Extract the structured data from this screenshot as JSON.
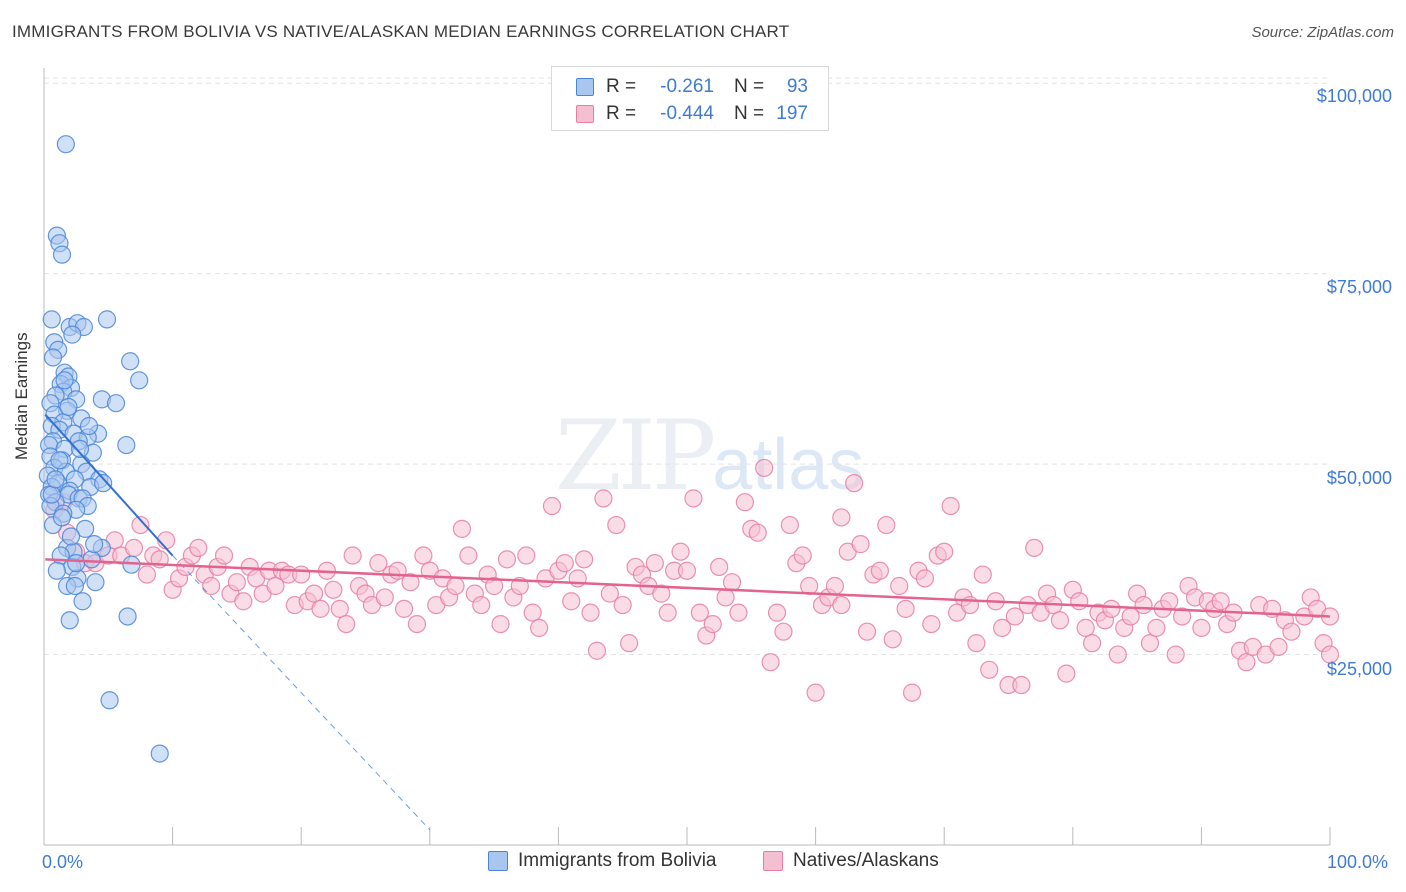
{
  "title": "IMMIGRANTS FROM BOLIVIA VS NATIVE/ALASKAN MEDIAN EARNINGS CORRELATION CHART",
  "source": "Source: ZipAtlas.com",
  "watermark": {
    "zip": "ZIP",
    "atlas": "atlas"
  },
  "legend": {
    "rows": [
      {
        "r_label": "R =",
        "r_value": "-0.261",
        "n_label": "N =",
        "n_value": "93",
        "color": "#4a86d8"
      },
      {
        "r_label": "R =",
        "r_value": "-0.444",
        "n_label": "N =",
        "n_value": "197",
        "color": "#e87ea1"
      }
    ]
  },
  "colors": {
    "blue_fill": "#a9c6ee",
    "blue_stroke": "#4a86d8",
    "blue_line": "#3371d1",
    "pink_fill": "#f5bfd2",
    "pink_stroke": "#e87ea1",
    "pink_line": "#e3638f",
    "grid": "#e3e3e3",
    "axis_text": "#3f7bd6"
  },
  "chart_data": {
    "type": "scatter",
    "title": "IMMIGRANTS FROM BOLIVIA VS NATIVE/ALASKAN MEDIAN EARNINGS CORRELATION CHART",
    "xlabel": "",
    "ylabel": "Median Earnings",
    "xlim": [
      0,
      100
    ],
    "ylim": [
      0,
      102000
    ],
    "x_tick_labels": [
      "0.0%",
      "100.0%"
    ],
    "y_ticks": [
      25000,
      50000,
      75000,
      100000
    ],
    "y_tick_labels": [
      "$25,000",
      "$50,000",
      "$75,000",
      "$100,000"
    ],
    "grid": true,
    "legend_position": "top-center",
    "series": [
      {
        "name": "Immigrants from Bolivia",
        "r": -0.261,
        "n": 93,
        "trend": {
          "x0": 0.1,
          "y0": 56500,
          "x1": 10.0,
          "y1": 38000,
          "dashed_to_x": 30.0,
          "dashed_to_y": 2000
        },
        "points": [
          [
            1.7,
            92000
          ],
          [
            1.0,
            80000
          ],
          [
            1.2,
            79000
          ],
          [
            1.4,
            77500
          ],
          [
            0.6,
            69000
          ],
          [
            2.0,
            68000
          ],
          [
            2.6,
            68500
          ],
          [
            3.1,
            68000
          ],
          [
            4.9,
            69000
          ],
          [
            2.2,
            67000
          ],
          [
            0.8,
            66000
          ],
          [
            1.1,
            65000
          ],
          [
            0.7,
            64000
          ],
          [
            6.7,
            63500
          ],
          [
            1.6,
            62000
          ],
          [
            1.9,
            61500
          ],
          [
            7.4,
            61000
          ],
          [
            1.3,
            60500
          ],
          [
            2.1,
            60000
          ],
          [
            1.5,
            59500
          ],
          [
            0.9,
            59000
          ],
          [
            4.5,
            58500
          ],
          [
            2.5,
            58500
          ],
          [
            0.5,
            58000
          ],
          [
            5.6,
            58000
          ],
          [
            1.8,
            57000
          ],
          [
            0.8,
            56500
          ],
          [
            2.9,
            56000
          ],
          [
            1.5,
            55500
          ],
          [
            0.6,
            55000
          ],
          [
            1.2,
            54500
          ],
          [
            2.3,
            54000
          ],
          [
            4.2,
            54000
          ],
          [
            3.4,
            53500
          ],
          [
            0.7,
            53000
          ],
          [
            2.7,
            53000
          ],
          [
            0.4,
            52500
          ],
          [
            6.4,
            52500
          ],
          [
            1.6,
            52000
          ],
          [
            3.8,
            51500
          ],
          [
            0.5,
            51000
          ],
          [
            1.4,
            50500
          ],
          [
            2.9,
            50000
          ],
          [
            0.8,
            49500
          ],
          [
            3.3,
            49000
          ],
          [
            1.7,
            49000
          ],
          [
            0.3,
            48500
          ],
          [
            4.3,
            48000
          ],
          [
            2.4,
            48000
          ],
          [
            1.1,
            47500
          ],
          [
            0.6,
            47000
          ],
          [
            3.6,
            47000
          ],
          [
            2.0,
            46500
          ],
          [
            0.4,
            46000
          ],
          [
            1.9,
            46000
          ],
          [
            2.7,
            45500
          ],
          [
            3.0,
            45500
          ],
          [
            0.9,
            45000
          ],
          [
            3.4,
            44500
          ],
          [
            0.5,
            44500
          ],
          [
            2.5,
            44000
          ],
          [
            1.5,
            43500
          ],
          [
            0.7,
            42000
          ],
          [
            3.2,
            41500
          ],
          [
            1.8,
            39000
          ],
          [
            4.5,
            39000
          ],
          [
            2.3,
            38500
          ],
          [
            1.3,
            38000
          ],
          [
            3.7,
            37500
          ],
          [
            6.8,
            36800
          ],
          [
            2.2,
            36500
          ],
          [
            1.0,
            36000
          ],
          [
            2.6,
            35000
          ],
          [
            4.0,
            34500
          ],
          [
            1.8,
            34000
          ],
          [
            2.4,
            34000
          ],
          [
            3.0,
            32000
          ],
          [
            6.5,
            30000
          ],
          [
            2.0,
            29500
          ],
          [
            5.1,
            19000
          ],
          [
            9.0,
            12000
          ],
          [
            0.6,
            46000
          ],
          [
            1.2,
            50500
          ],
          [
            3.5,
            55000
          ],
          [
            1.9,
            57500
          ],
          [
            2.8,
            52000
          ],
          [
            0.9,
            48000
          ],
          [
            4.6,
            47500
          ],
          [
            1.4,
            43000
          ],
          [
            2.1,
            40500
          ],
          [
            3.9,
            39500
          ],
          [
            2.5,
            37000
          ],
          [
            1.6,
            61000
          ]
        ]
      },
      {
        "name": "Natives/Alaskans",
        "r": -0.444,
        "n": 197,
        "trend": {
          "x0": 0.1,
          "y0": 37500,
          "x1": 100.0,
          "y1": 30000
        },
        "points": [
          [
            0.8,
            44000
          ],
          [
            1.5,
            45000
          ],
          [
            1.8,
            41000
          ],
          [
            2.5,
            38500
          ],
          [
            3.2,
            37000
          ],
          [
            4.0,
            37000
          ],
          [
            5.0,
            38000
          ],
          [
            5.5,
            40000
          ],
          [
            6.0,
            38000
          ],
          [
            7.0,
            39000
          ],
          [
            7.5,
            42000
          ],
          [
            8.0,
            35500
          ],
          [
            8.5,
            38000
          ],
          [
            9.0,
            37500
          ],
          [
            9.5,
            40000
          ],
          [
            10.0,
            33500
          ],
          [
            10.5,
            35000
          ],
          [
            11.0,
            36500
          ],
          [
            11.5,
            38000
          ],
          [
            12.0,
            39000
          ],
          [
            12.5,
            35500
          ],
          [
            13.0,
            34000
          ],
          [
            13.5,
            36500
          ],
          [
            14.0,
            38000
          ],
          [
            14.5,
            33000
          ],
          [
            15.0,
            34500
          ],
          [
            15.5,
            32000
          ],
          [
            16.0,
            36500
          ],
          [
            16.5,
            35000
          ],
          [
            17.0,
            33000
          ],
          [
            17.5,
            36000
          ],
          [
            18.0,
            34000
          ],
          [
            18.5,
            36000
          ],
          [
            19.0,
            35500
          ],
          [
            19.5,
            31500
          ],
          [
            20.0,
            35500
          ],
          [
            20.5,
            32000
          ],
          [
            21.0,
            33000
          ],
          [
            21.5,
            31000
          ],
          [
            22.0,
            36000
          ],
          [
            22.5,
            33500
          ],
          [
            23.0,
            31000
          ],
          [
            23.5,
            29000
          ],
          [
            24.0,
            38000
          ],
          [
            24.5,
            34000
          ],
          [
            25.0,
            33000
          ],
          [
            25.5,
            31500
          ],
          [
            26.0,
            37000
          ],
          [
            26.5,
            32500
          ],
          [
            27.0,
            35500
          ],
          [
            27.5,
            36000
          ],
          [
            28.0,
            31000
          ],
          [
            28.5,
            34500
          ],
          [
            29.0,
            29000
          ],
          [
            29.5,
            38000
          ],
          [
            30.0,
            36000
          ],
          [
            30.5,
            31500
          ],
          [
            31.0,
            35000
          ],
          [
            31.5,
            32500
          ],
          [
            32.0,
            34000
          ],
          [
            32.5,
            41500
          ],
          [
            33.0,
            38000
          ],
          [
            33.5,
            33000
          ],
          [
            34.0,
            31500
          ],
          [
            34.5,
            35500
          ],
          [
            35.0,
            34000
          ],
          [
            35.5,
            29000
          ],
          [
            36.0,
            37500
          ],
          [
            36.5,
            32500
          ],
          [
            37.0,
            34000
          ],
          [
            37.5,
            38000
          ],
          [
            38.0,
            30500
          ],
          [
            38.5,
            28500
          ],
          [
            39.0,
            35000
          ],
          [
            39.5,
            44500
          ],
          [
            40.0,
            36000
          ],
          [
            40.5,
            37000
          ],
          [
            41.0,
            32000
          ],
          [
            41.5,
            35000
          ],
          [
            42.0,
            37500
          ],
          [
            42.5,
            30500
          ],
          [
            43.0,
            25500
          ],
          [
            43.5,
            45500
          ],
          [
            44.0,
            33000
          ],
          [
            44.5,
            42000
          ],
          [
            45.0,
            31500
          ],
          [
            45.5,
            26500
          ],
          [
            46.0,
            36500
          ],
          [
            46.5,
            35500
          ],
          [
            47.0,
            34000
          ],
          [
            47.5,
            37000
          ],
          [
            48.0,
            33000
          ],
          [
            48.5,
            30500
          ],
          [
            49.0,
            36000
          ],
          [
            49.5,
            38500
          ],
          [
            50.0,
            36000
          ],
          [
            50.5,
            45500
          ],
          [
            51.0,
            30500
          ],
          [
            51.5,
            27500
          ],
          [
            52.0,
            29000
          ],
          [
            52.5,
            36500
          ],
          [
            53.0,
            32500
          ],
          [
            53.5,
            34500
          ],
          [
            54.0,
            30500
          ],
          [
            54.5,
            45000
          ],
          [
            55.0,
            41500
          ],
          [
            55.5,
            41000
          ],
          [
            56.0,
            49500
          ],
          [
            56.5,
            24000
          ],
          [
            57.0,
            30500
          ],
          [
            57.5,
            28000
          ],
          [
            58.0,
            42000
          ],
          [
            58.5,
            37000
          ],
          [
            59.0,
            38000
          ],
          [
            59.5,
            34000
          ],
          [
            60.0,
            20000
          ],
          [
            60.5,
            31500
          ],
          [
            61.0,
            32500
          ],
          [
            61.5,
            34000
          ],
          [
            62.0,
            31500
          ],
          [
            62.5,
            38500
          ],
          [
            63.0,
            47500
          ],
          [
            63.5,
            39500
          ],
          [
            64.0,
            28000
          ],
          [
            64.5,
            35500
          ],
          [
            65.0,
            36000
          ],
          [
            65.5,
            42000
          ],
          [
            66.0,
            27000
          ],
          [
            66.5,
            34000
          ],
          [
            67.0,
            31000
          ],
          [
            67.5,
            20000
          ],
          [
            68.0,
            36000
          ],
          [
            68.5,
            35000
          ],
          [
            69.0,
            29000
          ],
          [
            69.5,
            38000
          ],
          [
            70.0,
            38500
          ],
          [
            70.5,
            44500
          ],
          [
            71.0,
            30500
          ],
          [
            71.5,
            32500
          ],
          [
            72.0,
            31500
          ],
          [
            72.5,
            26500
          ],
          [
            73.0,
            35500
          ],
          [
            73.5,
            23000
          ],
          [
            74.0,
            32000
          ],
          [
            74.5,
            28500
          ],
          [
            75.0,
            21000
          ],
          [
            75.5,
            30000
          ],
          [
            76.0,
            21000
          ],
          [
            76.5,
            31500
          ],
          [
            77.0,
            39000
          ],
          [
            77.5,
            30500
          ],
          [
            78.0,
            33000
          ],
          [
            78.5,
            31500
          ],
          [
            79.0,
            29500
          ],
          [
            79.5,
            22500
          ],
          [
            80.0,
            33500
          ],
          [
            80.5,
            32000
          ],
          [
            81.0,
            28500
          ],
          [
            81.5,
            26500
          ],
          [
            82.0,
            30500
          ],
          [
            82.5,
            29500
          ],
          [
            83.0,
            31000
          ],
          [
            83.5,
            25000
          ],
          [
            84.0,
            28500
          ],
          [
            84.5,
            30000
          ],
          [
            85.0,
            33000
          ],
          [
            85.5,
            31500
          ],
          [
            86.0,
            26500
          ],
          [
            86.5,
            28500
          ],
          [
            87.0,
            31000
          ],
          [
            87.5,
            32000
          ],
          [
            88.0,
            25000
          ],
          [
            88.5,
            30000
          ],
          [
            89.0,
            34000
          ],
          [
            89.5,
            32500
          ],
          [
            90.0,
            28500
          ],
          [
            90.5,
            32000
          ],
          [
            91.0,
            31000
          ],
          [
            91.5,
            32000
          ],
          [
            92.0,
            29000
          ],
          [
            92.5,
            30500
          ],
          [
            93.0,
            25500
          ],
          [
            93.5,
            24000
          ],
          [
            94.0,
            26000
          ],
          [
            94.5,
            31500
          ],
          [
            95.0,
            25000
          ],
          [
            95.5,
            31000
          ],
          [
            96.0,
            26000
          ],
          [
            96.5,
            29500
          ],
          [
            97.0,
            28000
          ],
          [
            98.0,
            30000
          ],
          [
            98.5,
            32500
          ],
          [
            99.0,
            31000
          ],
          [
            99.5,
            26500
          ],
          [
            100.0,
            30000
          ],
          [
            100.0,
            25000
          ],
          [
            62.0,
            43000
          ]
        ]
      }
    ]
  },
  "bottom_legend": {
    "items": [
      {
        "label": "Immigrants from Bolivia"
      },
      {
        "label": "Natives/Alaskans"
      }
    ]
  }
}
